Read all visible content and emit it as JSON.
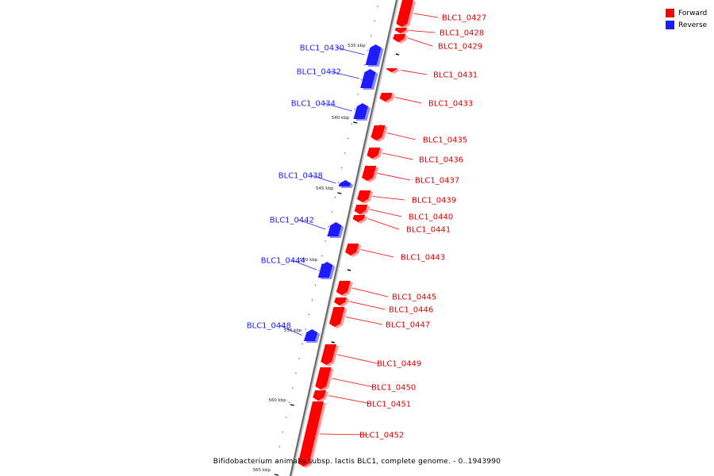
{
  "legend": {
    "forward": {
      "label": "Forward",
      "color": "#ff0000"
    },
    "reverse": {
      "label": "Reverse",
      "color": "#1c1cff"
    }
  },
  "caption": "Bifidobacterium animalis subsp. lactis BLC1, complete genome. - 0..1943990",
  "ticks": [
    "535 kbp",
    "540 kbp",
    "545 kbp",
    "550 kbp",
    "555 kbp",
    "560 kbp",
    "565 kbp"
  ],
  "genes": [
    {
      "name": "BLC1_0427",
      "strand": "forward"
    },
    {
      "name": "BLC1_0428",
      "strand": "forward"
    },
    {
      "name": "BLC1_0429",
      "strand": "forward"
    },
    {
      "name": "BLC1_0430",
      "strand": "reverse"
    },
    {
      "name": "BLC1_0431",
      "strand": "forward"
    },
    {
      "name": "BLC1_0432",
      "strand": "reverse"
    },
    {
      "name": "BLC1_0433",
      "strand": "forward"
    },
    {
      "name": "BLC1_0434",
      "strand": "reverse"
    },
    {
      "name": "BLC1_0435",
      "strand": "forward"
    },
    {
      "name": "BLC1_0436",
      "strand": "forward"
    },
    {
      "name": "BLC1_0437",
      "strand": "forward"
    },
    {
      "name": "BLC1_0438",
      "strand": "reverse"
    },
    {
      "name": "BLC1_0439",
      "strand": "forward"
    },
    {
      "name": "BLC1_0440",
      "strand": "forward"
    },
    {
      "name": "BLC1_0441",
      "strand": "forward"
    },
    {
      "name": "BLC1_0442",
      "strand": "reverse"
    },
    {
      "name": "BLC1_0443",
      "strand": "forward"
    },
    {
      "name": "BLC1_0444",
      "strand": "reverse"
    },
    {
      "name": "BLC1_0445",
      "strand": "forward"
    },
    {
      "name": "BLC1_0446",
      "strand": "forward"
    },
    {
      "name": "BLC1_0447",
      "strand": "forward"
    },
    {
      "name": "BLC1_0448",
      "strand": "reverse"
    },
    {
      "name": "BLC1_0449",
      "strand": "forward"
    },
    {
      "name": "BLC1_0450",
      "strand": "forward"
    },
    {
      "name": "BLC1_0451",
      "strand": "forward"
    },
    {
      "name": "BLC1_0452",
      "strand": "forward"
    }
  ]
}
